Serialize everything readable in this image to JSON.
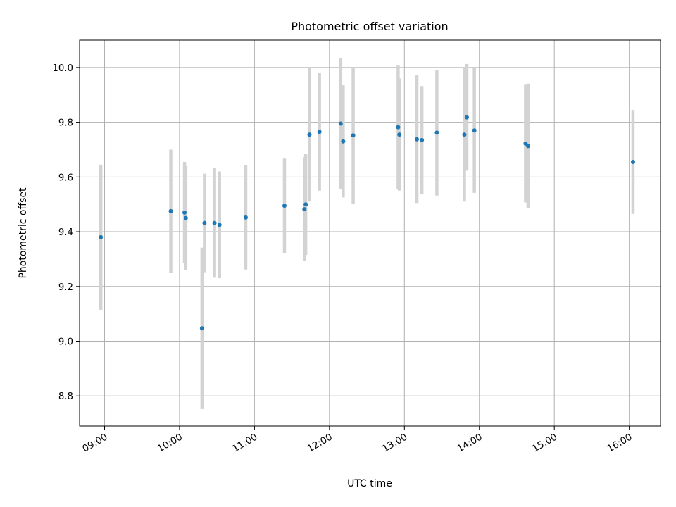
{
  "chart_data": {
    "type": "scatter",
    "title": "Photometric offset variation",
    "xlabel": "UTC time",
    "ylabel": "Photometric offset",
    "x_ticks": [
      "09:00",
      "10:00",
      "11:00",
      "12:00",
      "13:00",
      "14:00",
      "15:00",
      "16:00"
    ],
    "y_ticks": [
      "8.8",
      "9.0",
      "9.2",
      "9.4",
      "9.6",
      "9.8",
      "10.0"
    ],
    "xlim": [
      "08:40",
      "16:25"
    ],
    "ylim": [
      8.69,
      10.1
    ],
    "grid": true,
    "point_color": "#1f77b4",
    "errorbar_color": "#d3d3d3",
    "series": [
      {
        "points": [
          {
            "x": "08:57",
            "y": 9.38,
            "err": 0.265
          },
          {
            "x": "09:53",
            "y": 9.475,
            "err": 0.225
          },
          {
            "x": "10:04",
            "y": 9.47,
            "err": 0.185
          },
          {
            "x": "10:05",
            "y": 9.45,
            "err": 0.19
          },
          {
            "x": "10:18",
            "y": 9.047,
            "err": 0.295
          },
          {
            "x": "10:20",
            "y": 9.432,
            "err": 0.18
          },
          {
            "x": "10:28",
            "y": 9.432,
            "err": 0.2
          },
          {
            "x": "10:32",
            "y": 9.425,
            "err": 0.195
          },
          {
            "x": "10:53",
            "y": 9.452,
            "err": 0.19
          },
          {
            "x": "11:24",
            "y": 9.495,
            "err": 0.172
          },
          {
            "x": "11:40",
            "y": 9.482,
            "err": 0.19
          },
          {
            "x": "11:41",
            "y": 9.5,
            "err": 0.185
          },
          {
            "x": "11:44",
            "y": 9.755,
            "err": 0.245
          },
          {
            "x": "11:52",
            "y": 9.765,
            "err": 0.215
          },
          {
            "x": "12:09",
            "y": 9.795,
            "err": 0.24
          },
          {
            "x": "12:11",
            "y": 9.73,
            "err": 0.205
          },
          {
            "x": "12:19",
            "y": 9.752,
            "err": 0.25
          },
          {
            "x": "12:55",
            "y": 9.782,
            "err": 0.225
          },
          {
            "x": "12:56",
            "y": 9.755,
            "err": 0.205
          },
          {
            "x": "13:10",
            "y": 9.738,
            "err": 0.233
          },
          {
            "x": "13:14",
            "y": 9.735,
            "err": 0.197
          },
          {
            "x": "13:26",
            "y": 9.762,
            "err": 0.23
          },
          {
            "x": "13:48",
            "y": 9.755,
            "err": 0.245
          },
          {
            "x": "13:50",
            "y": 9.818,
            "err": 0.195
          },
          {
            "x": "13:56",
            "y": 9.77,
            "err": 0.228
          },
          {
            "x": "14:37",
            "y": 9.722,
            "err": 0.215
          },
          {
            "x": "14:39",
            "y": 9.713,
            "err": 0.228
          },
          {
            "x": "16:03",
            "y": 9.655,
            "err": 0.19
          }
        ]
      }
    ]
  }
}
